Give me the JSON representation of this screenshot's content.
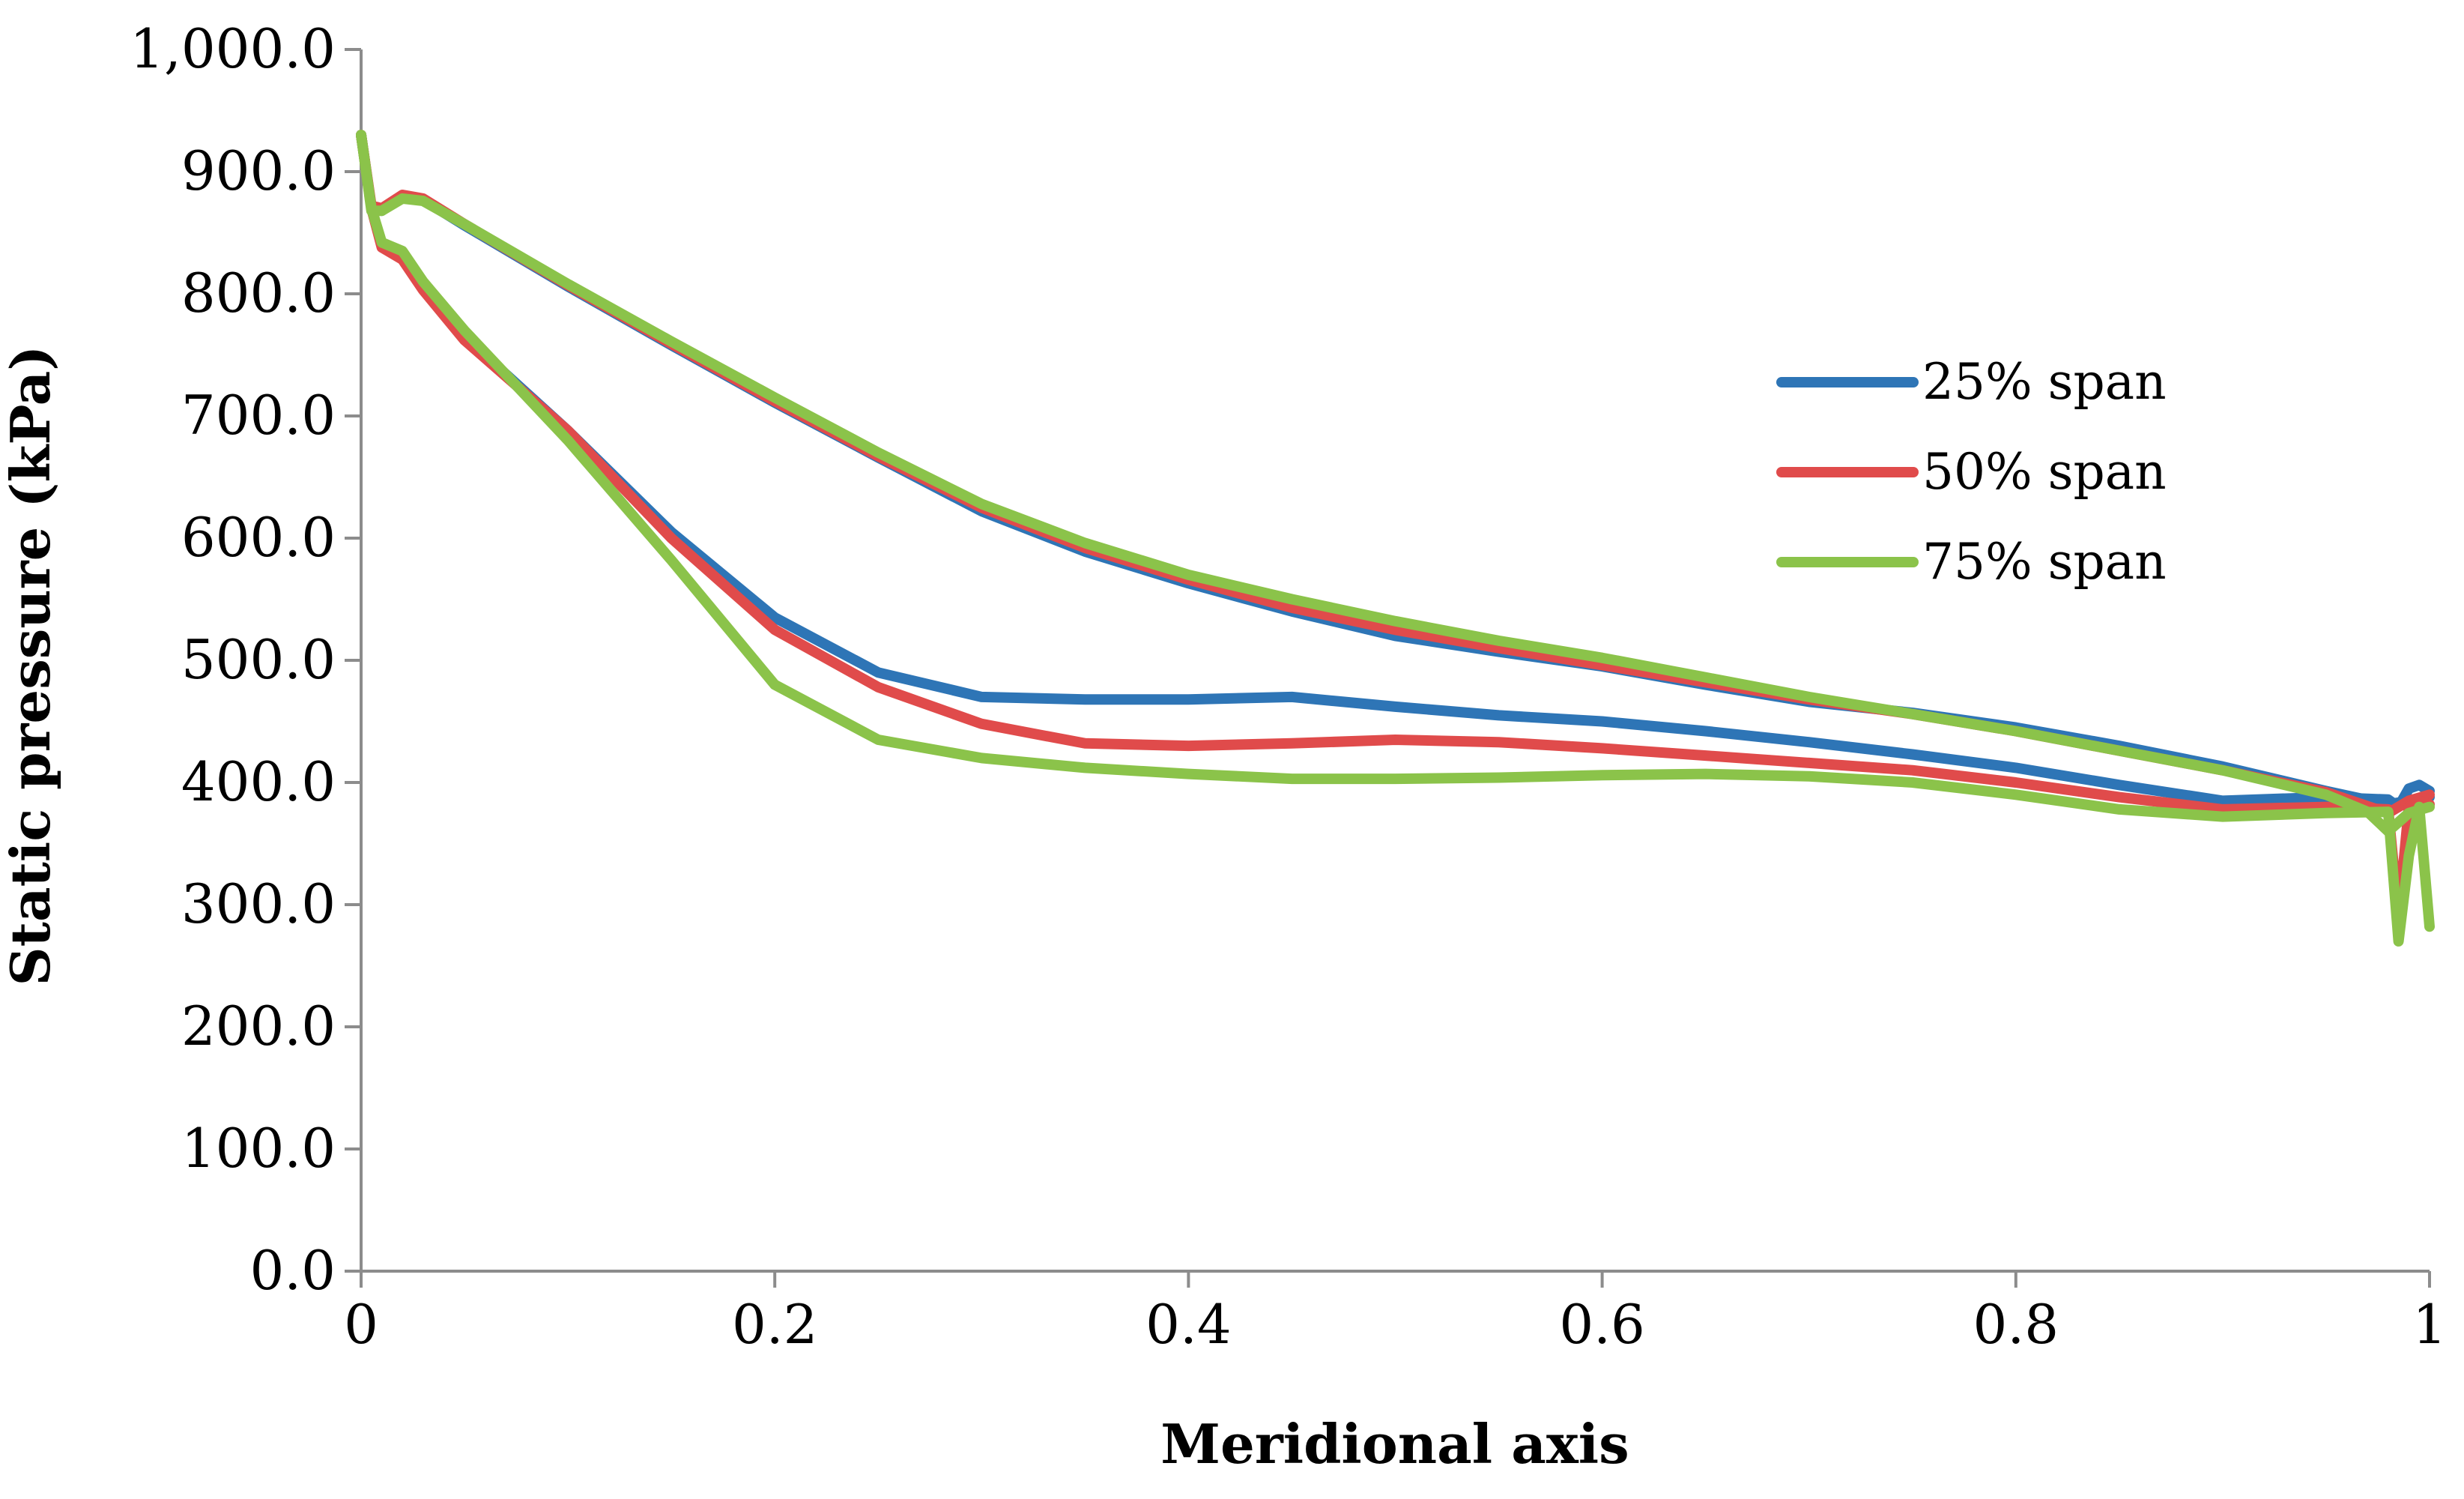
{
  "chart_data": {
    "type": "line",
    "title": "",
    "xlabel": "Meridional axis",
    "ylabel": "Static pressure (kPa)",
    "xlim": [
      0,
      1
    ],
    "ylim": [
      0,
      1000
    ],
    "xticks": [
      0,
      0.2,
      0.4,
      0.6,
      0.8,
      1
    ],
    "xtick_labels": [
      "0",
      "0.2",
      "0.4",
      "0.6",
      "0.8",
      "1"
    ],
    "yticks": [
      0,
      100,
      200,
      300,
      400,
      500,
      600,
      700,
      800,
      900,
      1000
    ],
    "ytick_labels": [
      "0.0",
      "100.0",
      "200.0",
      "300.0",
      "400.0",
      "500.0",
      "600.0",
      "700.0",
      "800.0",
      "900.0",
      "1,000.0"
    ],
    "grid": false,
    "legend_position": "right",
    "series": [
      {
        "name": "25% span",
        "color": "#2E75B6",
        "upper": {
          "x": [
            0.0,
            0.005,
            0.01,
            0.02,
            0.03,
            0.05,
            0.1,
            0.15,
            0.2,
            0.25,
            0.3,
            0.35,
            0.4,
            0.45,
            0.5,
            0.55,
            0.6,
            0.65,
            0.7,
            0.75,
            0.8,
            0.85,
            0.9,
            0.95,
            0.98,
            0.99,
            1.0
          ],
          "y": [
            930,
            870,
            868,
            880,
            877,
            856,
            806,
            758,
            711,
            666,
            622,
            589,
            563,
            540,
            520,
            507,
            495,
            480,
            466,
            457,
            445,
            430,
            413,
            393,
            382,
            385,
            388
          ]
        },
        "lower": {
          "x": [
            0.0,
            0.005,
            0.01,
            0.02,
            0.03,
            0.05,
            0.1,
            0.15,
            0.2,
            0.25,
            0.3,
            0.35,
            0.4,
            0.45,
            0.5,
            0.55,
            0.6,
            0.65,
            0.7,
            0.75,
            0.8,
            0.85,
            0.9,
            0.95,
            0.98,
            0.985,
            0.99,
            0.995,
            1.0
          ],
          "y": [
            930,
            870,
            840,
            830,
            805,
            765,
            688,
            605,
            535,
            490,
            470,
            468,
            468,
            470,
            462,
            455,
            450,
            442,
            433,
            423,
            412,
            398,
            385,
            388,
            386,
            380,
            395,
            398,
            393
          ]
        }
      },
      {
        "name": "50% span",
        "color": "#E04B4B",
        "upper": {
          "x": [
            0.0,
            0.005,
            0.01,
            0.02,
            0.03,
            0.05,
            0.1,
            0.15,
            0.2,
            0.25,
            0.3,
            0.35,
            0.4,
            0.45,
            0.5,
            0.55,
            0.6,
            0.65,
            0.7,
            0.75,
            0.8,
            0.85,
            0.9,
            0.95,
            0.98,
            0.99,
            1.0
          ],
          "y": [
            930,
            872,
            870,
            881,
            878,
            857,
            807,
            759,
            712,
            667,
            625,
            592,
            566,
            543,
            525,
            510,
            496,
            482,
            468,
            456,
            442,
            426,
            410,
            392,
            375,
            385,
            390
          ]
        },
        "lower": {
          "x": [
            0.0,
            0.005,
            0.01,
            0.02,
            0.03,
            0.05,
            0.1,
            0.15,
            0.2,
            0.25,
            0.3,
            0.35,
            0.4,
            0.45,
            0.5,
            0.55,
            0.6,
            0.65,
            0.7,
            0.75,
            0.8,
            0.85,
            0.9,
            0.95,
            0.98,
            0.985,
            0.99,
            0.995,
            1.0
          ],
          "y": [
            930,
            870,
            838,
            828,
            803,
            762,
            688,
            600,
            525,
            478,
            448,
            432,
            430,
            432,
            435,
            433,
            428,
            422,
            416,
            410,
            400,
            388,
            378,
            380,
            378,
            290,
            380,
            385,
            382
          ]
        }
      },
      {
        "name": "75% span",
        "color": "#8BC34A",
        "upper": {
          "x": [
            0.0,
            0.005,
            0.01,
            0.02,
            0.03,
            0.05,
            0.1,
            0.15,
            0.2,
            0.25,
            0.3,
            0.35,
            0.4,
            0.45,
            0.5,
            0.55,
            0.6,
            0.65,
            0.7,
            0.75,
            0.8,
            0.85,
            0.9,
            0.95,
            0.97,
            0.98,
            0.99,
            1.0
          ],
          "y": [
            930,
            868,
            868,
            878,
            876,
            857,
            808,
            761,
            715,
            670,
            628,
            596,
            570,
            550,
            532,
            516,
            502,
            486,
            470,
            456,
            442,
            426,
            410,
            390,
            376,
            360,
            375,
            380
          ]
        },
        "lower": {
          "x": [
            0.0,
            0.005,
            0.01,
            0.02,
            0.03,
            0.05,
            0.1,
            0.15,
            0.2,
            0.25,
            0.3,
            0.35,
            0.4,
            0.45,
            0.5,
            0.55,
            0.6,
            0.65,
            0.7,
            0.75,
            0.8,
            0.85,
            0.9,
            0.95,
            0.98,
            0.985,
            0.99,
            0.995,
            1.0
          ],
          "y": [
            930,
            870,
            842,
            835,
            810,
            770,
            680,
            582,
            480,
            435,
            420,
            412,
            407,
            403,
            403,
            404,
            406,
            407,
            405,
            400,
            390,
            378,
            372,
            375,
            376,
            270,
            340,
            380,
            282
          ]
        }
      }
    ]
  }
}
